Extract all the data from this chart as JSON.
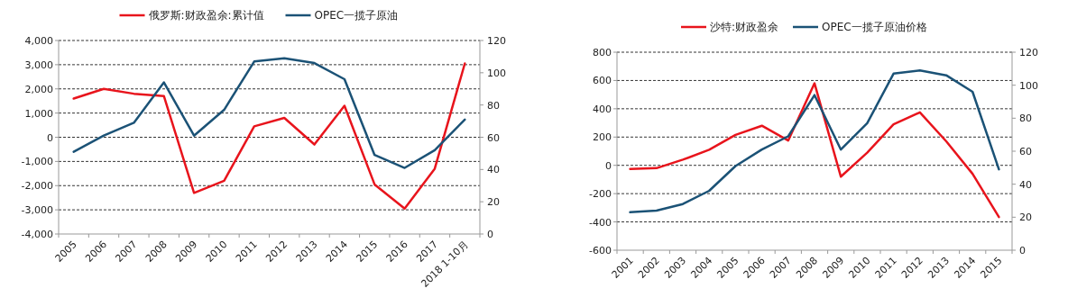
{
  "chart_data": [
    {
      "type": "line",
      "categories": [
        "2005",
        "2006",
        "2007",
        "2008",
        "2009",
        "2010",
        "2011",
        "2012",
        "2013",
        "2014",
        "2015",
        "2016",
        "2017",
        "2018 1-10月"
      ],
      "series": [
        {
          "name": "俄罗斯:财政盈余:累计值",
          "color": "#e8141c",
          "values": [
            1600,
            2000,
            1800,
            1700,
            -2300,
            -1800,
            450,
            800,
            -300,
            1300,
            -1950,
            -2950,
            -1300,
            3050
          ]
        },
        {
          "name": "OPEC一揽子原油",
          "color": "#1b5276",
          "axis": "y2",
          "values": [
            51,
            61,
            69,
            94,
            61,
            77,
            107,
            109,
            106,
            96,
            49,
            41,
            52,
            71
          ]
        }
      ],
      "ylim": [
        -4000,
        4000
      ],
      "yticks": [
        {
          "value": -4000,
          "label": "-4,000"
        },
        {
          "value": -3000,
          "label": "-3,000"
        },
        {
          "value": -2000,
          "label": "-2,000"
        },
        {
          "value": -1000,
          "label": "-1,000"
        },
        0,
        {
          "value": 1000,
          "label": "1,000"
        },
        {
          "value": 2000,
          "label": "2,000"
        },
        {
          "value": 3000,
          "label": "3,000"
        },
        {
          "value": 4000,
          "label": "4,000"
        }
      ],
      "y2lim": [
        0,
        120
      ],
      "y2ticks": [
        0,
        20,
        40,
        60,
        80,
        100,
        120
      ],
      "grid": "y",
      "legend": "top",
      "marker": "none",
      "line_style": "solid"
    },
    {
      "type": "line",
      "categories": [
        "2001",
        "2002",
        "2003",
        "2004",
        "2005",
        "2006",
        "2007",
        "2008",
        "2009",
        "2010",
        "2011",
        "2012",
        "2013",
        "2014",
        "2015"
      ],
      "series": [
        {
          "name": "沙特:财政盈余",
          "color": "#e8141c",
          "values": [
            -25,
            -20,
            40,
            110,
            215,
            280,
            175,
            580,
            -80,
            90,
            290,
            375,
            170,
            -60,
            -365
          ]
        },
        {
          "name": "OPEC一揽子原油价格",
          "color": "#1b5276",
          "axis": "y2",
          "values": [
            23,
            24,
            28,
            36,
            51,
            61,
            69,
            94,
            61,
            77,
            107,
            109,
            106,
            96,
            49
          ]
        }
      ],
      "ylim": [
        -600,
        800
      ],
      "yticks": [
        -600,
        -400,
        -200,
        0,
        200,
        400,
        600,
        800
      ],
      "y2lim": [
        0,
        120
      ],
      "y2ticks": [
        0,
        20,
        40,
        60,
        80,
        100,
        120
      ],
      "grid": "y",
      "legend": "top",
      "marker": "none",
      "line_style": "solid"
    }
  ]
}
